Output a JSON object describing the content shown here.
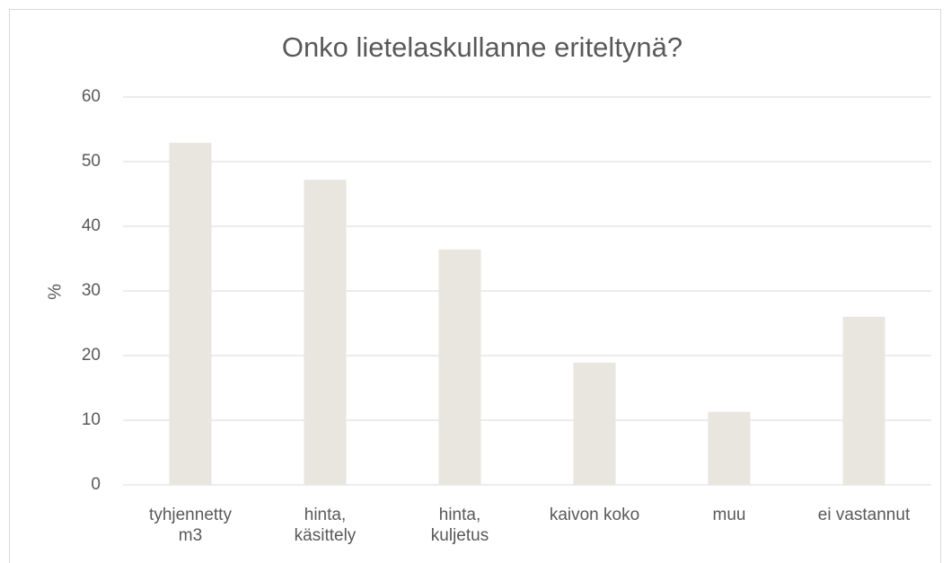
{
  "chart_data": {
    "type": "bar",
    "title": "Onko lietelaskullanne eriteltynä?",
    "y_label": "%",
    "categories": [
      "tyhjennetty\nm3",
      "hinta,\nkäsittely",
      "hinta,\nkuljetus",
      "kaivon koko",
      "muu",
      "ei vastannut"
    ],
    "values": [
      52.9,
      47.2,
      36.4,
      18.9,
      11.3,
      26.0
    ],
    "color": "#e9e6df",
    "ylim": [
      0,
      60
    ],
    "yticks": [
      0,
      10,
      20,
      30,
      40,
      50,
      60
    ],
    "grid": true
  }
}
